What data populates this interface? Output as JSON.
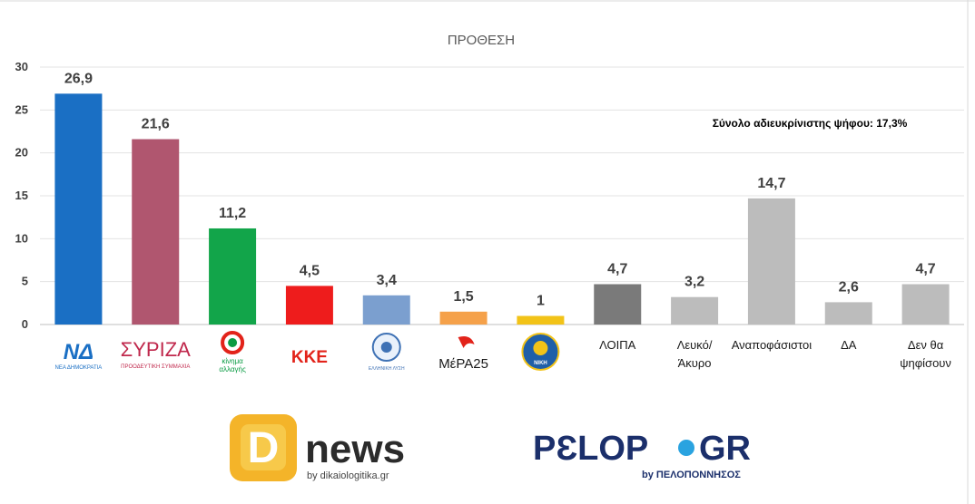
{
  "chart_data": {
    "type": "bar",
    "title": "ΠΡΟΘΕΣΗ",
    "ylim": [
      0,
      30
    ],
    "yticks": [
      0,
      5,
      10,
      15,
      20,
      25,
      30
    ],
    "grid": true,
    "annotation": "Σύνολο αδιευκρίνιστης ψήφου: 17,3%",
    "categories": [
      {
        "kind": "logo",
        "logo": "nd",
        "logo_text": "ΝΔ",
        "logo_sub": "ΝΕΑ ΔΗΜΟΚΡΑΤΙΑ"
      },
      {
        "kind": "logo",
        "logo": "syriza",
        "logo_text": "ΣΥΡΙΖΑ",
        "logo_sub": "ΠΡΟΟΔΕΥΤΙΚΗ ΣΥΜΜΑΧΙΑ"
      },
      {
        "kind": "logo",
        "logo": "kinal",
        "logo_text": "κίνημα αλλαγής"
      },
      {
        "kind": "logo",
        "logo": "kke",
        "logo_text": "ΚΚΕ"
      },
      {
        "kind": "logo",
        "logo": "elliniki-lysi",
        "logo_text": "ΕΛΛΗΝΙΚΗ ΛΥΣΗ"
      },
      {
        "kind": "logo",
        "logo": "mera25",
        "logo_text": "ΜέΡΑ25"
      },
      {
        "kind": "logo",
        "logo": "niki",
        "logo_text": "ΝΙΚΗ"
      },
      {
        "kind": "text",
        "label": "ΛΟΙΠΑ"
      },
      {
        "kind": "text",
        "label": "Λευκό/ Άκυρο"
      },
      {
        "kind": "text",
        "label": "Αναποφάσιστοι"
      },
      {
        "kind": "text",
        "label": "ΔΑ"
      },
      {
        "kind": "text",
        "label": "Δεν θα ψηφίσουν"
      }
    ],
    "values": [
      26.9,
      21.6,
      11.2,
      4.5,
      3.4,
      1.5,
      1,
      4.7,
      3.2,
      14.7,
      2.6,
      4.7
    ],
    "value_labels": [
      "26,9",
      "21,6",
      "11,2",
      "4,5",
      "3,4",
      "1,5",
      "1",
      "4,7",
      "3,2",
      "14,7",
      "2,6",
      "4,7"
    ],
    "colors": [
      "#1a6fc4",
      "#b0566f",
      "#12a54a",
      "#ee1c1c",
      "#7b9fcf",
      "#f5a14a",
      "#f2c318",
      "#7a7a7a",
      "#bcbcbc",
      "#bcbcbc",
      "#bcbcbc",
      "#bcbcbc"
    ]
  },
  "footer": {
    "dnews": {
      "letter": "D",
      "name": "news",
      "sub": "by dikaiologitika.gr"
    },
    "pelop": {
      "name_left": "PƐLOP",
      "name_right": "GR",
      "sub": "by ΠΕΛΟΠΟΝΝΗΣΟΣ"
    }
  }
}
